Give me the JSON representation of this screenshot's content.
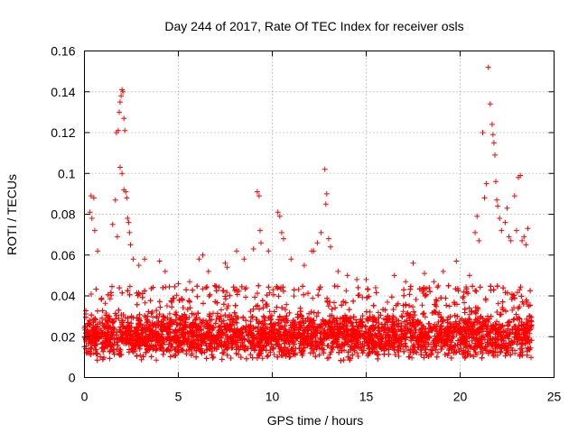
{
  "chart_data": {
    "type": "scatter",
    "title": "Day 244 of 2017, Rate Of TEC Index for receiver osls",
    "xlabel": "GPS time / hours",
    "ylabel": "ROTI / TECUs",
    "xlim": [
      0,
      25
    ],
    "ylim": [
      0,
      0.16
    ],
    "x_ticks": [
      0,
      5,
      10,
      15,
      20,
      25
    ],
    "x_tick_labels": [
      "0",
      "5",
      "10",
      "15",
      "20",
      "25"
    ],
    "y_ticks": [
      0,
      0.02,
      0.04,
      0.06,
      0.08,
      0.1,
      0.12,
      0.14,
      0.16
    ],
    "y_tick_labels": [
      "0",
      "0.02",
      "0.04",
      "0.06",
      "0.08",
      "0.1",
      "0.12",
      "0.14",
      "0.16"
    ],
    "grid": true,
    "marker": "+",
    "color": "#ff0000",
    "points_x": [
      0.3,
      0.35,
      0.4,
      0.5,
      0.55,
      0.7,
      1.5,
      1.7,
      1.8,
      1.85,
      1.9,
      1.95,
      2.0,
      2.05,
      2.1,
      2.15,
      1.9,
      2.0,
      2.1,
      2.2,
      2.25,
      2.3,
      2.35,
      1.65,
      1.75,
      2.4,
      2.45,
      2.6,
      2.9,
      3.2,
      4.0,
      4.3,
      5.0,
      5.6,
      6.1,
      6.3,
      6.6,
      7.5,
      7.6,
      8.1,
      8.5,
      9.0,
      9.2,
      9.3,
      9.35,
      9.4,
      9.8,
      10.3,
      10.4,
      10.5,
      10.6,
      11.0,
      11.7,
      12.1,
      12.2,
      12.4,
      12.6,
      12.8,
      12.85,
      12.9,
      13.0,
      13.1,
      13.5,
      14.0,
      14.5,
      15.0,
      15.5,
      16.5,
      17.1,
      17.5,
      18.1,
      18.6,
      19.1,
      19.8,
      20.5,
      20.8,
      20.9,
      21.0,
      21.2,
      21.3,
      21.4,
      21.5,
      21.6,
      21.7,
      21.75,
      21.8,
      21.85,
      21.9,
      21.95,
      22.0,
      22.1,
      22.2,
      22.4,
      22.5,
      22.6,
      22.7,
      22.9,
      23.0,
      23.1,
      23.2,
      23.3,
      23.4,
      23.5,
      23.6
    ],
    "points_y": [
      0.081,
      0.089,
      0.078,
      0.088,
      0.072,
      0.062,
      0.075,
      0.12,
      0.121,
      0.13,
      0.135,
      0.138,
      0.141,
      0.14,
      0.127,
      0.121,
      0.103,
      0.1,
      0.092,
      0.091,
      0.088,
      0.078,
      0.076,
      0.087,
      0.069,
      0.071,
      0.065,
      0.058,
      0.055,
      0.058,
      0.057,
      0.052,
      0.046,
      0.047,
      0.058,
      0.06,
      0.052,
      0.056,
      0.054,
      0.062,
      0.058,
      0.063,
      0.091,
      0.089,
      0.072,
      0.066,
      0.062,
      0.081,
      0.079,
      0.071,
      0.068,
      0.058,
      0.055,
      0.062,
      0.062,
      0.066,
      0.071,
      0.102,
      0.085,
      0.09,
      0.068,
      0.064,
      0.052,
      0.05,
      0.048,
      0.048,
      0.044,
      0.05,
      0.047,
      0.056,
      0.051,
      0.047,
      0.052,
      0.057,
      0.05,
      0.071,
      0.079,
      0.067,
      0.12,
      0.088,
      0.095,
      0.152,
      0.134,
      0.124,
      0.119,
      0.115,
      0.109,
      0.096,
      0.087,
      0.084,
      0.078,
      0.072,
      0.076,
      0.083,
      0.069,
      0.067,
      0.089,
      0.072,
      0.098,
      0.099,
      0.067,
      0.069,
      0.065,
      0.073
    ],
    "dense_band": {
      "x_range": [
        0,
        23.8
      ],
      "baseline_y": 0.02,
      "lower_y": 0.005,
      "upper_y": 0.045,
      "count": 6500
    }
  }
}
